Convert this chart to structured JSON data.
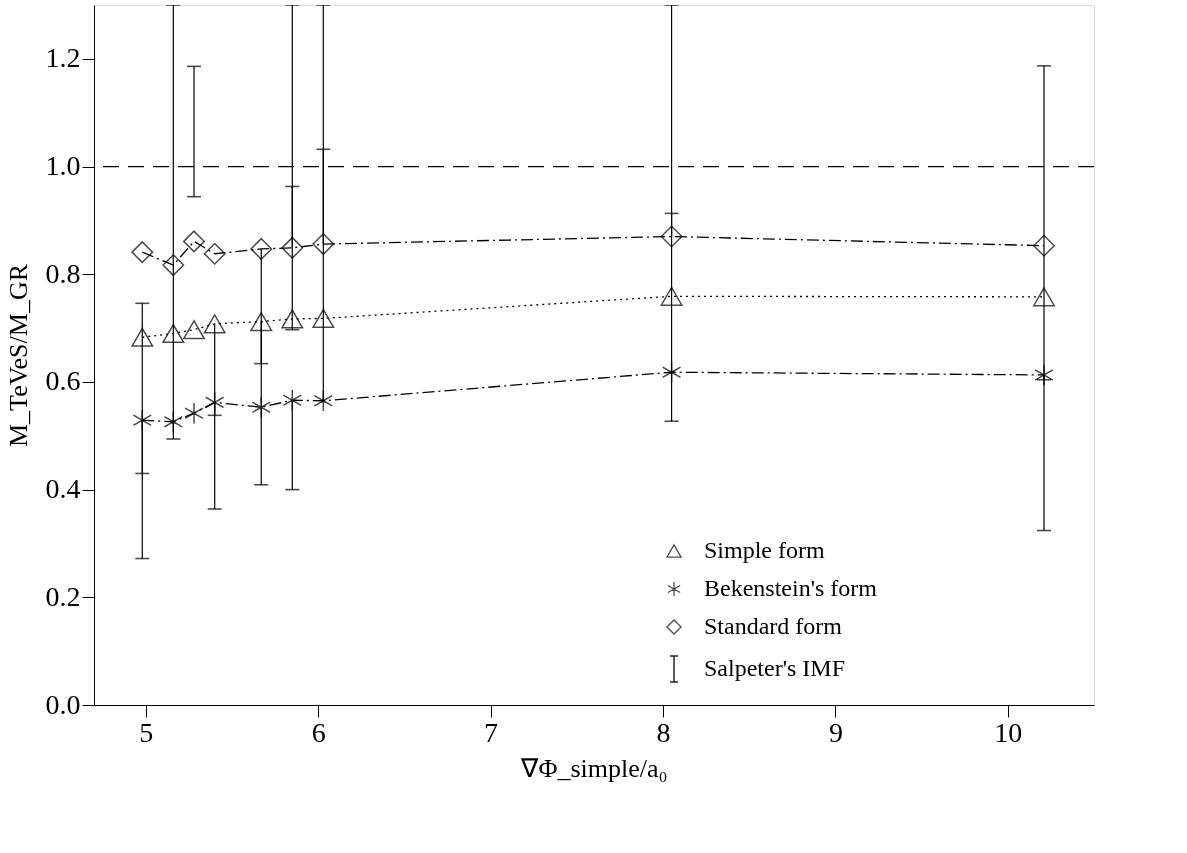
{
  "chart_data": {
    "type": "line",
    "xlabel": "∇Φ_simple/a₀",
    "ylabel": "M_TeVeS/M_GR",
    "x": [
      4.98,
      5.16,
      5.28,
      5.4,
      5.67,
      5.85,
      6.03,
      8.05,
      10.21
    ],
    "series": [
      {
        "name": "Simple form",
        "color": "#000000",
        "marker": "triangle",
        "line_style": "dotted",
        "values": [
          0.683,
          0.69,
          0.697,
          0.708,
          0.712,
          0.717,
          0.718,
          0.759,
          0.758
        ],
        "errors": [
          [
            0.43,
            0.746
          ],
          null,
          null,
          [
            0.364,
            0.708
          ],
          [
            0.634,
            0.712
          ],
          [
            0.697,
            0.963
          ],
          null,
          null,
          null
        ]
      },
      {
        "name": "Bekenstein's form",
        "color": "#000000",
        "marker": "cross",
        "line_style": "dashed",
        "values": [
          0.529,
          0.526,
          0.542,
          0.562,
          0.553,
          0.566,
          0.565,
          0.618,
          0.613
        ],
        "errors": [
          [
            0.272,
            0.529
          ],
          [
            0.494,
            1.3
          ],
          null,
          [
            0.538,
            0.562
          ],
          null,
          [
            0.4,
            0.566
          ],
          [
            0.565,
            1.3
          ],
          [
            0.527,
            0.913
          ],
          [
            0.324,
            0.613
          ]
        ]
      },
      {
        "name": "Standard form",
        "color": "#000000",
        "marker": "diamond",
        "line_style": "dashed",
        "values": [
          0.841,
          0.817,
          0.861,
          0.838,
          0.847,
          0.849,
          0.856,
          0.87,
          0.853
        ],
        "errors": [
          null,
          null,
          [
            0.944,
            1.186
          ],
          null,
          [
            0.409,
            0.847
          ],
          [
            0.849,
            1.3
          ],
          [
            0.856,
            1.032
          ],
          [
            0.87,
            1.3
          ],
          [
            0.604,
            1.187
          ]
        ]
      }
    ],
    "annotations": [
      "Salpeter's IMF"
    ],
    "ref_lines": [
      {
        "axis": "y",
        "value": 1.0,
        "line_style": "dashed",
        "color": "#000000"
      }
    ],
    "xlim": [
      4.7,
      10.5
    ],
    "xticks": [
      5,
      6,
      7,
      8,
      9,
      10
    ],
    "ylim": [
      0,
      1.3
    ],
    "yticks": [
      {
        "value": 0,
        "label": "0.0"
      },
      0.2,
      0.4,
      0.6,
      0.8,
      {
        "value": 1,
        "label": "1.0"
      },
      1.2
    ],
    "grid": false,
    "legend": "bottom right"
  }
}
